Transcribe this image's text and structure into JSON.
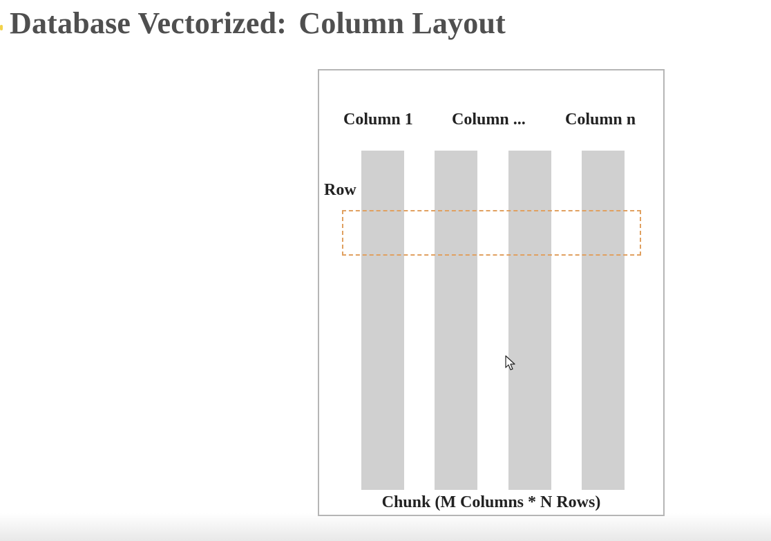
{
  "title": {
    "left": "Database Vectorized",
    "separator": ":",
    "right": "Column Layout"
  },
  "diagram": {
    "columns": [
      {
        "label": "Column 1"
      },
      {
        "label": "Column ..."
      },
      {
        "label": "Column n"
      }
    ],
    "row_label": "Row",
    "caption": "Chunk (M Columns * N Rows)"
  },
  "colors": {
    "title": "#4f4f4f",
    "column_bar": "#d0d0d0",
    "row_highlight": "#e0a060",
    "frame_border": "#b5b5b5"
  },
  "icons": {
    "cursor": "mouse-pointer-icon"
  }
}
